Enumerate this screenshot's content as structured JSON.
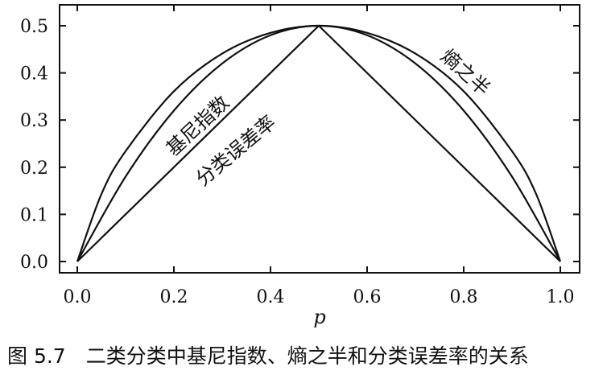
{
  "chart_data": {
    "type": "line",
    "xlabel": "p",
    "ylabel": "",
    "xlim": [
      0.0,
      1.0
    ],
    "ylim": [
      0.0,
      0.5
    ],
    "x_ticks": [
      "0.0",
      "0.2",
      "0.4",
      "0.6",
      "0.8",
      "1.0"
    ],
    "y_ticks": [
      "0.0",
      "0.1",
      "0.2",
      "0.3",
      "0.4",
      "0.5"
    ],
    "grid": false,
    "legend": "none",
    "series": [
      {
        "name": "熵之半",
        "x": [
          0.0,
          0.05,
          0.1,
          0.2,
          0.3,
          0.4,
          0.5,
          0.6,
          0.7,
          0.8,
          0.9,
          0.95,
          1.0
        ],
        "values": [
          0.0,
          0.143,
          0.234,
          0.361,
          0.441,
          0.485,
          0.5,
          0.485,
          0.441,
          0.361,
          0.234,
          0.143,
          0.0
        ]
      },
      {
        "name": "基尼指数",
        "x": [
          0.0,
          0.1,
          0.2,
          0.3,
          0.4,
          0.5,
          0.6,
          0.7,
          0.8,
          0.9,
          1.0
        ],
        "values": [
          0.0,
          0.18,
          0.32,
          0.42,
          0.48,
          0.5,
          0.48,
          0.42,
          0.32,
          0.18,
          0.0
        ]
      },
      {
        "name": "分类误差率",
        "x": [
          0.0,
          0.5,
          1.0
        ],
        "values": [
          0.0,
          0.5,
          0.0
        ]
      }
    ],
    "annotations": {
      "gini": "基尼指数",
      "error": "分类误差率",
      "entropy": "熵之半"
    }
  },
  "caption": "图 5.7　二类分类中基尼指数、熵之半和分类误差率的关系"
}
